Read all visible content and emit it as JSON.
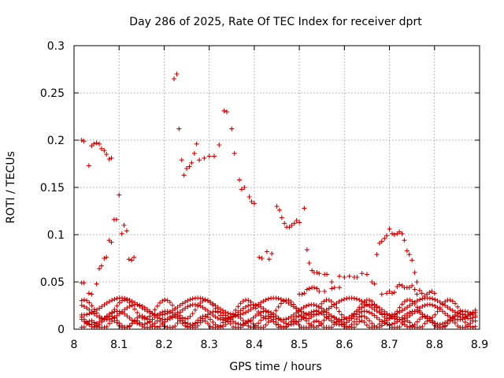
{
  "chart_data": {
    "type": "scatter",
    "title": "Day 286 of 2025, Rate Of TEC Index for receiver dprt",
    "xlabel": "GPS time / hours",
    "ylabel": "ROTI / TECUs",
    "xlim": [
      8.0,
      8.9
    ],
    "ylim": [
      0.0,
      0.3
    ],
    "x_ticks": [
      "8",
      "8.1",
      "8.2",
      "8.3",
      "8.4",
      "8.5",
      "8.6",
      "8.7",
      "8.8",
      "8.9"
    ],
    "y_ticks": [
      "0",
      "0.05",
      "0.1",
      "0.15",
      "0.2",
      "0.25",
      "0.3"
    ],
    "grid": true,
    "marker": "+",
    "color": "#cc0000",
    "series": [
      {
        "points": [
          [
            8.017,
            0.2
          ],
          [
            8.022,
            0.199
          ],
          [
            8.033,
            0.173
          ],
          [
            8.039,
            0.194
          ],
          [
            8.044,
            0.196
          ],
          [
            8.05,
            0.197
          ],
          [
            8.056,
            0.196
          ],
          [
            8.061,
            0.191
          ],
          [
            8.067,
            0.189
          ],
          [
            8.072,
            0.185
          ],
          [
            8.078,
            0.18
          ],
          [
            8.083,
            0.181
          ],
          [
            8.222,
            0.265
          ],
          [
            8.228,
            0.27
          ],
          [
            8.233,
            0.212
          ],
          [
            8.239,
            0.179
          ],
          [
            8.244,
            0.163
          ],
          [
            8.25,
            0.17
          ],
          [
            8.256,
            0.172
          ],
          [
            8.261,
            0.176
          ],
          [
            8.267,
            0.186
          ],
          [
            8.272,
            0.196
          ],
          [
            8.278,
            0.179
          ],
          [
            8.289,
            0.181
          ],
          [
            8.3,
            0.183
          ],
          [
            8.311,
            0.183
          ],
          [
            8.322,
            0.195
          ],
          [
            8.333,
            0.231
          ],
          [
            8.339,
            0.23
          ],
          [
            8.35,
            0.212
          ],
          [
            8.356,
            0.186
          ],
          [
            8.367,
            0.158
          ],
          [
            8.372,
            0.148
          ],
          [
            8.378,
            0.15
          ],
          [
            8.389,
            0.14
          ],
          [
            8.394,
            0.135
          ],
          [
            8.4,
            0.133
          ],
          [
            8.411,
            0.076
          ],
          [
            8.417,
            0.075
          ],
          [
            8.428,
            0.082
          ],
          [
            8.433,
            0.074
          ],
          [
            8.439,
            0.08
          ],
          [
            8.45,
            0.13
          ],
          [
            8.456,
            0.126
          ],
          [
            8.461,
            0.118
          ],
          [
            8.467,
            0.112
          ],
          [
            8.472,
            0.108
          ],
          [
            8.478,
            0.108
          ],
          [
            8.483,
            0.11
          ],
          [
            8.489,
            0.112
          ],
          [
            8.494,
            0.115
          ],
          [
            8.5,
            0.113
          ],
          [
            8.511,
            0.128
          ],
          [
            8.517,
            0.084
          ],
          [
            8.522,
            0.07
          ],
          [
            8.528,
            0.062
          ],
          [
            8.533,
            0.06
          ],
          [
            8.539,
            0.06
          ],
          [
            8.544,
            0.059
          ],
          [
            8.556,
            0.058
          ],
          [
            8.561,
            0.058
          ],
          [
            8.572,
            0.05
          ],
          [
            8.578,
            0.044
          ],
          [
            8.589,
            0.056
          ],
          [
            8.6,
            0.055
          ],
          [
            8.611,
            0.056
          ],
          [
            8.622,
            0.055
          ],
          [
            8.628,
            0.055
          ],
          [
            8.639,
            0.059
          ],
          [
            8.65,
            0.058
          ],
          [
            8.661,
            0.05
          ],
          [
            8.672,
            0.079
          ],
          [
            8.678,
            0.091
          ],
          [
            8.683,
            0.093
          ],
          [
            8.689,
            0.096
          ],
          [
            8.694,
            0.099
          ],
          [
            8.7,
            0.106
          ],
          [
            8.706,
            0.101
          ],
          [
            8.711,
            0.1
          ],
          [
            8.717,
            0.101
          ],
          [
            8.722,
            0.103
          ],
          [
            8.728,
            0.101
          ],
          [
            8.733,
            0.094
          ],
          [
            8.739,
            0.083
          ],
          [
            8.744,
            0.079
          ],
          [
            8.75,
            0.073
          ],
          [
            8.756,
            0.06
          ],
          [
            8.761,
            0.05
          ]
        ]
      },
      {
        "points": [
          [
            8.017,
            0.049
          ],
          [
            8.022,
            0.049
          ],
          [
            8.033,
            0.038
          ],
          [
            8.039,
            0.037
          ],
          [
            8.05,
            0.048
          ],
          [
            8.056,
            0.064
          ],
          [
            8.061,
            0.067
          ],
          [
            8.067,
            0.075
          ],
          [
            8.072,
            0.076
          ],
          [
            8.078,
            0.094
          ],
          [
            8.083,
            0.092
          ],
          [
            8.089,
            0.116
          ],
          [
            8.094,
            0.116
          ],
          [
            8.1,
            0.142
          ],
          [
            8.106,
            0.101
          ],
          [
            8.111,
            0.11
          ],
          [
            8.117,
            0.104
          ],
          [
            8.122,
            0.074
          ],
          [
            8.128,
            0.073
          ],
          [
            8.133,
            0.076
          ],
          [
            8.5,
            0.037
          ],
          [
            8.506,
            0.037
          ],
          [
            8.511,
            0.038
          ],
          [
            8.517,
            0.042
          ],
          [
            8.522,
            0.043
          ],
          [
            8.528,
            0.044
          ],
          [
            8.533,
            0.044
          ],
          [
            8.539,
            0.043
          ],
          [
            8.544,
            0.04
          ],
          [
            8.556,
            0.04
          ],
          [
            8.572,
            0.043
          ],
          [
            8.589,
            0.044
          ],
          [
            8.667,
            0.048
          ],
          [
            8.683,
            0.037
          ],
          [
            8.694,
            0.038
          ],
          [
            8.7,
            0.04
          ],
          [
            8.706,
            0.038
          ],
          [
            8.711,
            0.039
          ],
          [
            8.717,
            0.045
          ],
          [
            8.722,
            0.047
          ],
          [
            8.728,
            0.046
          ],
          [
            8.733,
            0.044
          ],
          [
            8.739,
            0.044
          ],
          [
            8.744,
            0.044
          ],
          [
            8.75,
            0.046
          ],
          [
            8.756,
            0.042
          ],
          [
            8.761,
            0.037
          ],
          [
            8.767,
            0.041
          ],
          [
            8.772,
            0.038
          ],
          [
            8.778,
            0.035
          ],
          [
            8.783,
            0.037
          ],
          [
            8.789,
            0.039
          ],
          [
            8.794,
            0.04
          ],
          [
            8.8,
            0.038
          ]
        ]
      }
    ],
    "background_bands": [
      {
        "amplitude": 0.01,
        "center": 0.021,
        "period": 0.09,
        "phase": 0.0
      },
      {
        "amplitude": 0.008,
        "center": 0.018,
        "period": 0.13,
        "phase": 1.2
      },
      {
        "amplitude": 0.007,
        "center": 0.012,
        "period": 0.11,
        "phase": 2.4
      },
      {
        "amplitude": 0.006,
        "center": 0.008,
        "period": 0.07,
        "phase": 0.7
      },
      {
        "amplitude": 0.005,
        "center": 0.004,
        "period": 0.05,
        "phase": 3.1
      },
      {
        "amplitude": 0.009,
        "center": 0.024,
        "period": 0.17,
        "phase": 4.0
      }
    ],
    "background_step_hours": 0.0056
  }
}
